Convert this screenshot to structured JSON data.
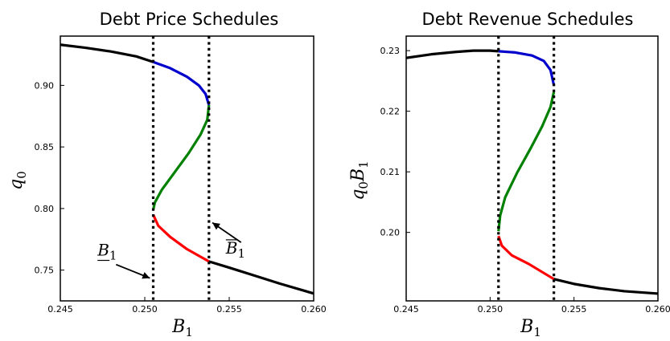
{
  "chart_data": [
    {
      "type": "line",
      "title": "Debt Price Schedules",
      "xlabel": "B",
      "xlabel_sub": "1",
      "ylabel": "q",
      "ylabel_sub": "0",
      "xlim": [
        0.245,
        0.26
      ],
      "ylim": [
        0.725,
        0.94
      ],
      "xticks": [
        "0.245",
        "0.250",
        "0.255",
        "0.260"
      ],
      "xtick_values": [
        0.245,
        0.25,
        0.255,
        0.26
      ],
      "yticks": [
        "0.75",
        "0.80",
        "0.85",
        "0.90"
      ],
      "ytick_values": [
        0.75,
        0.8,
        0.85,
        0.9
      ],
      "vlines": [
        0.2505,
        0.2538
      ],
      "series": [
        {
          "color": "#000000",
          "points": [
            [
              0.245,
              0.933
            ],
            [
              0.2465,
              0.9305
            ],
            [
              0.248,
              0.9275
            ],
            [
              0.2495,
              0.9235
            ],
            [
              0.2505,
              0.919
            ]
          ]
        },
        {
          "color": "#0000cc",
          "points": [
            [
              0.2505,
              0.919
            ],
            [
              0.2515,
              0.914
            ],
            [
              0.2525,
              0.907
            ],
            [
              0.2532,
              0.9
            ],
            [
              0.2536,
              0.893
            ],
            [
              0.2538,
              0.884
            ]
          ]
        },
        {
          "color": "#008000",
          "points": [
            [
              0.2538,
              0.884
            ],
            [
              0.2537,
              0.872
            ],
            [
              0.2533,
              0.86
            ],
            [
              0.2526,
              0.845
            ],
            [
              0.2518,
              0.83
            ],
            [
              0.251,
              0.815
            ],
            [
              0.2506,
              0.805
            ],
            [
              0.2505,
              0.799
            ]
          ]
        },
        {
          "color": "#ff0000",
          "points": [
            [
              0.2505,
              0.795
            ],
            [
              0.2508,
              0.786
            ],
            [
              0.2515,
              0.777
            ],
            [
              0.2525,
              0.767
            ],
            [
              0.2538,
              0.757
            ]
          ]
        },
        {
          "color": "#000000",
          "points": [
            [
              0.2538,
              0.757
            ],
            [
              0.255,
              0.752
            ],
            [
              0.2565,
              0.7455
            ],
            [
              0.258,
              0.739
            ],
            [
              0.26,
              0.731
            ]
          ]
        }
      ],
      "annotations": [
        {
          "label": "B",
          "sub": "1",
          "style": "underline",
          "text_at": [
            0.2472,
            0.7618
          ],
          "arrow_from": [
            0.2483,
            0.7545
          ],
          "arrow_to": [
            0.2503,
            0.7435
          ]
        },
        {
          "label": "B",
          "sub": "1",
          "style": "overline",
          "text_at": [
            0.2548,
            0.7635
          ],
          "arrow_from": [
            0.2557,
            0.7725
          ],
          "arrow_to": [
            0.254,
            0.7885
          ]
        }
      ]
    },
    {
      "type": "line",
      "title": "Debt Revenue Schedules",
      "xlabel": "B",
      "xlabel_sub": "1",
      "ylabel": "q",
      "ylabel_sub": "0",
      "ylabel_tail": "B",
      "ylabel_tail_sub": "1",
      "xlim": [
        0.245,
        0.26
      ],
      "ylim": [
        0.1887,
        0.2324
      ],
      "xticks": [
        "0.245",
        "0.250",
        "0.255",
        "0.260"
      ],
      "xtick_values": [
        0.245,
        0.25,
        0.255,
        0.26
      ],
      "yticks": [
        "0.20",
        "0.21",
        "0.22",
        "0.23"
      ],
      "ytick_values": [
        0.2,
        0.21,
        0.22,
        0.23
      ],
      "vlines": [
        0.2505,
        0.2538
      ],
      "series": [
        {
          "color": "#000000",
          "points": [
            [
              0.245,
              0.2288
            ],
            [
              0.2465,
              0.2294
            ],
            [
              0.248,
              0.2298
            ],
            [
              0.249,
              0.23
            ],
            [
              0.25,
              0.23
            ],
            [
              0.2505,
              0.2299
            ]
          ]
        },
        {
          "color": "#0000cc",
          "points": [
            [
              0.2505,
              0.2299
            ],
            [
              0.2515,
              0.2297
            ],
            [
              0.2525,
              0.2292
            ],
            [
              0.2532,
              0.2283
            ],
            [
              0.2536,
              0.2268
            ],
            [
              0.2538,
              0.2243
            ]
          ]
        },
        {
          "color": "#008000",
          "points": [
            [
              0.2538,
              0.2232
            ],
            [
              0.2536,
              0.2207
            ],
            [
              0.2531,
              0.2175
            ],
            [
              0.2524,
              0.2138
            ],
            [
              0.2516,
              0.2098
            ],
            [
              0.2509,
              0.2058
            ],
            [
              0.2506,
              0.2028
            ],
            [
              0.2505,
              0.2002
            ]
          ]
        },
        {
          "color": "#ff0000",
          "points": [
            [
              0.2505,
              0.1994
            ],
            [
              0.2507,
              0.1978
            ],
            [
              0.2513,
              0.1962
            ],
            [
              0.2523,
              0.1948
            ],
            [
              0.2538,
              0.1923
            ]
          ]
        },
        {
          "color": "#000000",
          "points": [
            [
              0.2538,
              0.1923
            ],
            [
              0.255,
              0.1915
            ],
            [
              0.2565,
              0.1908
            ],
            [
              0.258,
              0.1903
            ],
            [
              0.26,
              0.1899
            ]
          ]
        }
      ],
      "annotations": []
    }
  ]
}
